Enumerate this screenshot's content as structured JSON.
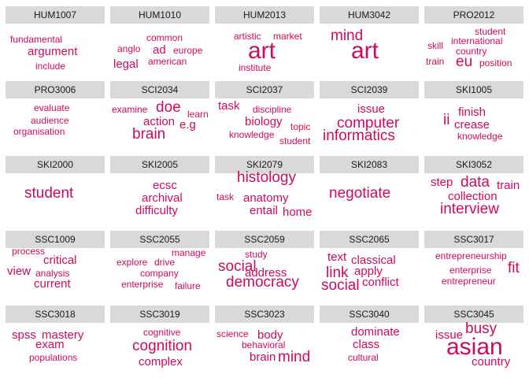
{
  "chart_data": {
    "type": "word-cloud-facets",
    "color": "#cc0a5f",
    "header_bg": "#d9d9d9",
    "panels": [
      {
        "code": "HUM1007",
        "words": [
          {
            "text": "fundamental",
            "w": 1
          },
          {
            "text": "argument",
            "w": 2
          },
          {
            "text": "include",
            "w": 1
          }
        ]
      },
      {
        "code": "HUM1010",
        "words": [
          {
            "text": "common",
            "w": 1
          },
          {
            "text": "anglo",
            "w": 1
          },
          {
            "text": "ad",
            "w": 2
          },
          {
            "text": "europe",
            "w": 1
          },
          {
            "text": "american",
            "w": 1
          },
          {
            "text": "legal",
            "w": 2
          }
        ]
      },
      {
        "code": "HUM2013",
        "words": [
          {
            "text": "artistic",
            "w": 1
          },
          {
            "text": "market",
            "w": 1
          },
          {
            "text": "art",
            "w": 4
          },
          {
            "text": "institute",
            "w": 1
          }
        ]
      },
      {
        "code": "HUM3042",
        "words": [
          {
            "text": "mind",
            "w": 3
          },
          {
            "text": "art",
            "w": 4
          }
        ]
      },
      {
        "code": "PRO2012",
        "words": [
          {
            "text": "student",
            "w": 1
          },
          {
            "text": "skill",
            "w": 1
          },
          {
            "text": "international",
            "w": 1
          },
          {
            "text": "country",
            "w": 1
          },
          {
            "text": "train",
            "w": 1
          },
          {
            "text": "eu",
            "w": 3
          },
          {
            "text": "position",
            "w": 1
          }
        ]
      },
      {
        "code": "PRO3006",
        "words": [
          {
            "text": "evaluate",
            "w": 1
          },
          {
            "text": "audience",
            "w": 1
          },
          {
            "text": "organisation",
            "w": 1
          }
        ]
      },
      {
        "code": "SCI2034",
        "words": [
          {
            "text": "examine",
            "w": 1
          },
          {
            "text": "doe",
            "w": 3
          },
          {
            "text": "learn",
            "w": 1
          },
          {
            "text": "action",
            "w": 2
          },
          {
            "text": "e.g",
            "w": 2
          },
          {
            "text": "brain",
            "w": 3
          }
        ]
      },
      {
        "code": "SCI2037",
        "words": [
          {
            "text": "task",
            "w": 2
          },
          {
            "text": "discipline",
            "w": 1
          },
          {
            "text": "biology",
            "w": 2
          },
          {
            "text": "topic",
            "w": 1
          },
          {
            "text": "knowledge",
            "w": 1
          },
          {
            "text": "student",
            "w": 1
          }
        ]
      },
      {
        "code": "SCI2039",
        "words": [
          {
            "text": "issue",
            "w": 2
          },
          {
            "text": "computer",
            "w": 3
          },
          {
            "text": "informatics",
            "w": 3
          }
        ]
      },
      {
        "code": "SKI1005",
        "words": [
          {
            "text": "finish",
            "w": 2
          },
          {
            "text": "ii",
            "w": 3
          },
          {
            "text": "crease",
            "w": 2
          },
          {
            "text": "knowledge",
            "w": 1
          }
        ]
      },
      {
        "code": "SKI2000",
        "words": [
          {
            "text": "student",
            "w": 3
          }
        ]
      },
      {
        "code": "SKI2005",
        "words": [
          {
            "text": "ecsc",
            "w": 2
          },
          {
            "text": "archival",
            "w": 2
          },
          {
            "text": "difficulty",
            "w": 2
          }
        ]
      },
      {
        "code": "SKI2079",
        "words": [
          {
            "text": "histology",
            "w": 3
          },
          {
            "text": "task",
            "w": 1
          },
          {
            "text": "anatomy",
            "w": 2
          },
          {
            "text": "entail",
            "w": 2
          },
          {
            "text": "home",
            "w": 2
          }
        ]
      },
      {
        "code": "SKI2083",
        "words": [
          {
            "text": "negotiate",
            "w": 3
          }
        ]
      },
      {
        "code": "SKI3052",
        "words": [
          {
            "text": "step",
            "w": 2
          },
          {
            "text": "data",
            "w": 3
          },
          {
            "text": "train",
            "w": 2
          },
          {
            "text": "collection",
            "w": 2
          },
          {
            "text": "interview",
            "w": 3
          }
        ]
      },
      {
        "code": "SSC1009",
        "words": [
          {
            "text": "process",
            "w": 1
          },
          {
            "text": "critical",
            "w": 2
          },
          {
            "text": "view",
            "w": 2
          },
          {
            "text": "analysis",
            "w": 1
          },
          {
            "text": "current",
            "w": 2
          }
        ]
      },
      {
        "code": "SSC2055",
        "words": [
          {
            "text": "manage",
            "w": 1
          },
          {
            "text": "explore",
            "w": 1
          },
          {
            "text": "drive",
            "w": 1
          },
          {
            "text": "company",
            "w": 1
          },
          {
            "text": "enterprise",
            "w": 1
          },
          {
            "text": "failure",
            "w": 1
          }
        ]
      },
      {
        "code": "SSC2059",
        "words": [
          {
            "text": "social",
            "w": 3
          },
          {
            "text": "study",
            "w": 1
          },
          {
            "text": "address",
            "w": 2
          },
          {
            "text": "democracy",
            "w": 3
          }
        ]
      },
      {
        "code": "SSC2065",
        "words": [
          {
            "text": "text",
            "w": 2
          },
          {
            "text": "classical",
            "w": 2
          },
          {
            "text": "link",
            "w": 3
          },
          {
            "text": "apply",
            "w": 2
          },
          {
            "text": "social",
            "w": 3
          },
          {
            "text": "conflict",
            "w": 2
          }
        ]
      },
      {
        "code": "SSC3017",
        "words": [
          {
            "text": "entrepreneurship",
            "w": 1
          },
          {
            "text": "enterprise",
            "w": 1
          },
          {
            "text": "fit",
            "w": 3
          },
          {
            "text": "entrepreneur",
            "w": 1
          }
        ]
      },
      {
        "code": "SSC3018",
        "words": [
          {
            "text": "spss",
            "w": 2
          },
          {
            "text": "mastery",
            "w": 2
          },
          {
            "text": "exam",
            "w": 2
          },
          {
            "text": "populations",
            "w": 1
          }
        ]
      },
      {
        "code": "SSC3019",
        "words": [
          {
            "text": "cognitive",
            "w": 1
          },
          {
            "text": "cognition",
            "w": 3
          },
          {
            "text": "complex",
            "w": 2
          }
        ]
      },
      {
        "code": "SSC3023",
        "words": [
          {
            "text": "science",
            "w": 1
          },
          {
            "text": "body",
            "w": 2
          },
          {
            "text": "behavioral",
            "w": 1
          },
          {
            "text": "brain",
            "w": 2
          },
          {
            "text": "mind",
            "w": 3
          }
        ]
      },
      {
        "code": "SSC3040",
        "words": [
          {
            "text": "dominate",
            "w": 2
          },
          {
            "text": "class",
            "w": 2
          },
          {
            "text": "cultural",
            "w": 1
          }
        ]
      },
      {
        "code": "SSC3045",
        "words": [
          {
            "text": "busy",
            "w": 3
          },
          {
            "text": "issue",
            "w": 2
          },
          {
            "text": "asian",
            "w": 4
          },
          {
            "text": "country",
            "w": 2
          }
        ]
      }
    ]
  }
}
